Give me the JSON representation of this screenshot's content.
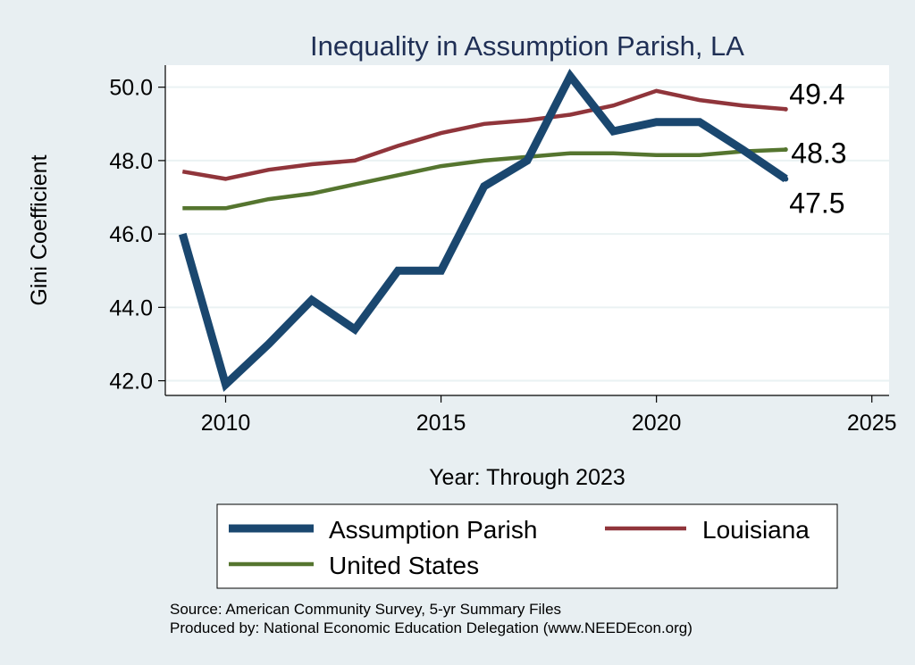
{
  "chart_data": {
    "type": "line",
    "title": "Inequality in Assumption Parish, LA",
    "xlabel": "Year: Through 2023",
    "ylabel": "Gini Coefficient",
    "xlim": [
      2008.6,
      2025.4
    ],
    "ylim": [
      41.6,
      50.6
    ],
    "xticks": [
      2010,
      2015,
      2020,
      2025
    ],
    "yticks": [
      42.0,
      44.0,
      46.0,
      48.0,
      50.0
    ],
    "ytick_labels": [
      "42.0",
      "44.0",
      "46.0",
      "48.0",
      "50.0"
    ],
    "x": [
      2009,
      2010,
      2011,
      2012,
      2013,
      2014,
      2015,
      2016,
      2017,
      2018,
      2019,
      2020,
      2021,
      2022,
      2023
    ],
    "series": [
      {
        "name": "Assumption Parish",
        "color": "#1a476f",
        "values": [
          46.0,
          41.9,
          43.0,
          44.2,
          43.4,
          45.0,
          45.0,
          47.3,
          48.0,
          50.3,
          48.8,
          49.05,
          49.05,
          48.3,
          47.5
        ],
        "end_label": "47.5"
      },
      {
        "name": "Louisiana",
        "color": "#90353b",
        "values": [
          47.7,
          47.5,
          47.75,
          47.9,
          48.0,
          48.4,
          48.75,
          49.0,
          49.1,
          49.25,
          49.5,
          49.9,
          49.65,
          49.5,
          49.4
        ],
        "end_label": "49.4"
      },
      {
        "name": "United States",
        "color": "#55752f",
        "values": [
          46.7,
          46.7,
          46.95,
          47.1,
          47.35,
          47.6,
          47.85,
          48.0,
          48.1,
          48.2,
          48.2,
          48.15,
          48.15,
          48.25,
          48.3
        ],
        "end_label": "48.3"
      }
    ],
    "legend": {
      "position": "bottom",
      "entries": [
        "Assumption Parish",
        "Louisiana",
        "United States"
      ]
    },
    "grid": true
  },
  "footer": {
    "source": "Source: American Community Survey, 5-yr Summary Files",
    "produced_by": "Produced by: National Economic Education Delegation (www.NEEDEcon.org)"
  },
  "colors": {
    "background": "#e8eff2",
    "plot_background": "#ffffff",
    "grid": "#eaf2f3",
    "title": "#1f2f55"
  }
}
